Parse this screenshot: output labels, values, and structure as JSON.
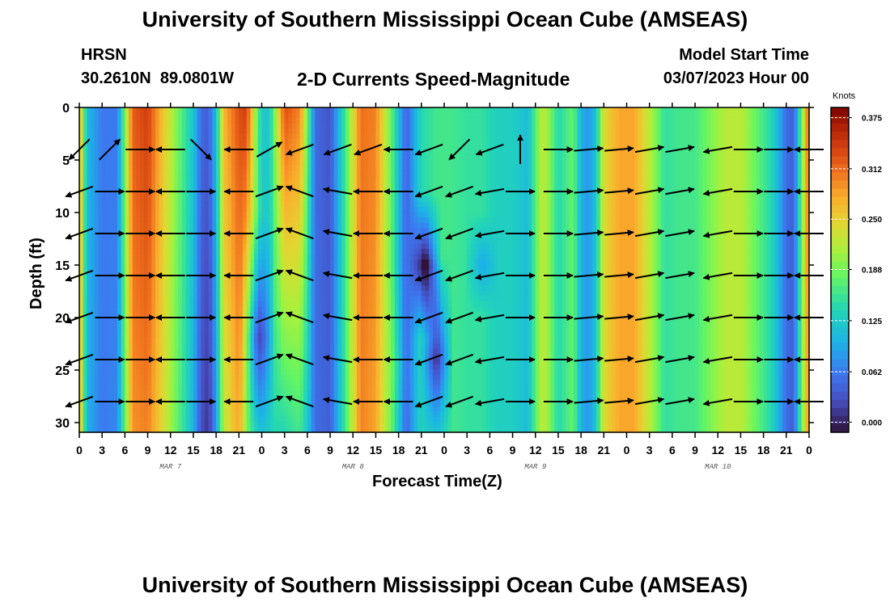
{
  "header": {
    "title": "University of Southern Mississippi Ocean Cube (AMSEAS)",
    "station_name": "HRSN",
    "station_coords": "30.2610N  89.0801W",
    "plot_subtitle": "2-D Currents Speed-Magnitude",
    "model_start_label": "Model Start Time",
    "model_start_value": "03/07/2023 Hour 00"
  },
  "footer": {
    "title": "University of Southern Mississippi Ocean Cube (AMSEAS)"
  },
  "chart_data": {
    "type": "heatmap",
    "title": "2-D Currents Speed-Magnitude",
    "xlabel": "Forecast Time(Z)",
    "ylabel": "Depth (ft)",
    "xlim": [
      0,
      96
    ],
    "ylim": [
      31,
      0
    ],
    "x_tick_values": [
      0,
      3,
      6,
      9,
      12,
      15,
      18,
      21,
      24,
      27,
      30,
      33,
      36,
      39,
      42,
      45,
      48,
      51,
      54,
      57,
      60,
      63,
      66,
      69,
      72,
      75,
      78,
      81,
      84,
      87,
      90,
      93,
      96
    ],
    "x_tick_labels": [
      "0",
      "3",
      "6",
      "9",
      "12",
      "15",
      "18",
      "21",
      "0",
      "3",
      "6",
      "9",
      "12",
      "15",
      "18",
      "21",
      "0",
      "3",
      "6",
      "9",
      "12",
      "15",
      "18",
      "21",
      "0",
      "3",
      "6",
      "9",
      "12",
      "15",
      "18",
      "21",
      "0"
    ],
    "y_ticks": [
      0,
      5,
      10,
      15,
      20,
      25,
      30
    ],
    "day_labels": [
      {
        "label": "MAR 7",
        "hour": 12
      },
      {
        "label": "MAR 8",
        "hour": 36
      },
      {
        "label": "MAR 9",
        "hour": 60
      },
      {
        "label": "MAR 10",
        "hour": 84
      }
    ],
    "colorbar": {
      "unit": "Knots",
      "min": -0.0125,
      "max": 0.3875,
      "ticks": [
        0.375,
        0.312,
        0.25,
        0.188,
        0.125,
        0.062,
        0.0
      ],
      "tick_labels": [
        "0.375",
        "0.312",
        "0.250",
        "0.188",
        "0.125",
        "0.062",
        "0.000"
      ]
    },
    "speed_surface_knots": [
      0.28,
      0.11,
      0.06,
      0.06,
      0.32,
      0.34,
      0.26,
      0.15,
      0.12,
      0.05,
      0.04,
      0.11,
      0.27,
      0.33,
      0.34,
      0.12,
      0.12,
      0.33,
      0.3,
      0.19,
      0.05,
      0.03,
      0.16,
      0.31,
      0.3,
      0.18,
      0.04,
      0.14,
      0.16,
      0.16,
      0.15,
      0.15,
      0.13,
      0.13,
      0.11,
      0.23,
      0.14,
      0.18,
      0.1,
      0.08,
      0.12,
      0.24,
      0.28,
      0.28,
      0.22,
      0.15,
      0.16,
      0.16,
      0.19,
      0.22,
      0.22,
      0.18,
      0.14,
      0.1,
      0.05,
      0.04,
      0.18,
      0.33,
      0.33
    ],
    "speed_bottom_knots": [
      0.28,
      0.1,
      0.06,
      0.07,
      0.29,
      0.3,
      0.24,
      0.14,
      0.1,
      0.03,
      0.01,
      0.08,
      0.22,
      0.28,
      0.2,
      0.14,
      0.14,
      0.14,
      0.16,
      0.12,
      0.05,
      0.04,
      0.16,
      0.3,
      0.28,
      0.18,
      0.04,
      0.14,
      0.16,
      0.16,
      0.15,
      0.15,
      0.13,
      0.13,
      0.11,
      0.23,
      0.14,
      0.18,
      0.1,
      0.08,
      0.12,
      0.24,
      0.28,
      0.28,
      0.22,
      0.15,
      0.16,
      0.16,
      0.19,
      0.22,
      0.22,
      0.18,
      0.14,
      0.1,
      0.05,
      0.04,
      0.18,
      0.3,
      0.3
    ],
    "speed_time_hours": [
      0,
      1,
      3,
      5,
      7,
      9,
      11,
      14,
      15,
      16,
      17,
      18,
      19,
      21,
      22,
      24,
      25,
      27,
      29,
      30,
      31,
      33,
      35,
      37,
      39,
      41,
      43,
      45,
      47,
      49,
      51,
      53,
      55,
      57,
      59,
      61,
      63,
      65,
      66,
      67,
      68,
      69,
      71,
      73,
      75,
      77,
      79,
      81,
      83,
      85,
      87,
      89,
      91,
      92,
      93,
      94,
      95,
      96,
      96.5
    ],
    "mid_column_anomalies": [
      {
        "hour": 23.5,
        "depth_center_ft": 22,
        "depth_halfwidth_ft": 12,
        "speed_drop_knots": 0.14
      },
      {
        "hour": 45.5,
        "depth_center_ft": 15,
        "depth_halfwidth_ft": 7,
        "speed_drop_knots": 0.18
      },
      {
        "hour": 47,
        "depth_center_ft": 24,
        "depth_halfwidth_ft": 10,
        "speed_drop_knots": 0.16
      },
      {
        "hour": 53,
        "depth_center_ft": 15,
        "depth_halfwidth_ft": 5,
        "speed_drop_knots": 0.06
      },
      {
        "hour": 42,
        "depth_center_ft": 25,
        "depth_halfwidth_ft": 10,
        "speed_drop_knots": -0.02
      }
    ],
    "vector_depths_ft": [
      4,
      8,
      12,
      16,
      20,
      24,
      28
    ],
    "vector_times_hours": [
      0,
      4,
      8,
      12,
      16,
      21,
      25,
      29,
      34,
      38,
      42,
      46,
      50,
      54,
      58,
      63,
      67,
      71,
      75,
      79,
      84,
      88,
      92,
      96
    ],
    "vector_direction_deg": [
      200,
      0,
      0,
      180,
      0,
      180,
      20,
      160,
      170,
      180,
      180,
      200,
      200,
      190,
      0,
      0,
      5,
      5,
      10,
      10,
      190,
      0,
      0,
      180
    ],
    "vector_surface_direction_deg": [
      225,
      45,
      0,
      180,
      315,
      180,
      30,
      200,
      200,
      200,
      180,
      200,
      225,
      200,
      90,
      0,
      5,
      5,
      10,
      10,
      190,
      0,
      0,
      180
    ]
  }
}
